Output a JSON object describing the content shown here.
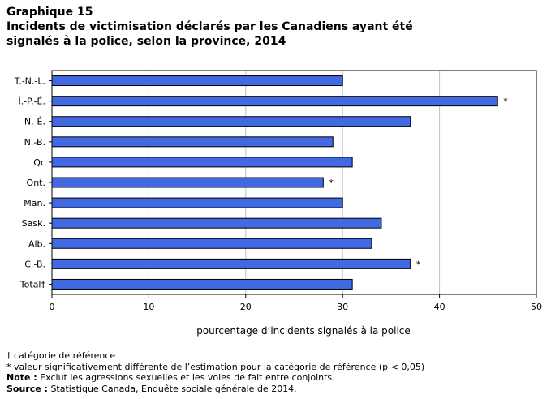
{
  "header": {
    "chart_number": "Graphique 15",
    "title": "Incidents de victimisation déclarés par les Canadiens ayant été signalés à la police, selon la province, 2014"
  },
  "chart_data": {
    "type": "bar",
    "orientation": "horizontal",
    "title": "Incidents de victimisation déclarés par les Canadiens ayant été signalés à la police, selon la province, 2014",
    "xlabel": "pourcentage d’incidents signalés à la police",
    "ylabel": "",
    "categories": [
      "T.-N.-L.",
      "Î.-P.-É.",
      "N.-É.",
      "N.-B.",
      "Qc",
      "Ont.",
      "Man.",
      "Sask.",
      "Alb.",
      "C.-B.",
      "Total†"
    ],
    "values": [
      30,
      46,
      37,
      29,
      31,
      28,
      30,
      34,
      33,
      37,
      31
    ],
    "significance_markers": [
      "",
      "*",
      "",
      "",
      "",
      "*",
      "",
      "",
      "",
      "*",
      ""
    ],
    "xlim": [
      0,
      50
    ],
    "xticks": [
      0,
      10,
      20,
      30,
      40,
      50
    ],
    "grid": "vertical",
    "legend": "none",
    "bar_color": "#4169E1",
    "bar_border_color": "#000000",
    "grid_color": "#c0c0c0"
  },
  "notes": {
    "dagger_note": "† catégorie de référence",
    "asterisk_note": "* valeur significativement différente de l’estimation pour la catégorie de référence (p < 0,05)",
    "note_label": "Note :",
    "note_text": " Exclut les agressions sexuelles et les voies de fait entre conjoints.",
    "source_label": "Source :",
    "source_text": " Statistique Canada, Enquête sociale générale de 2014."
  }
}
